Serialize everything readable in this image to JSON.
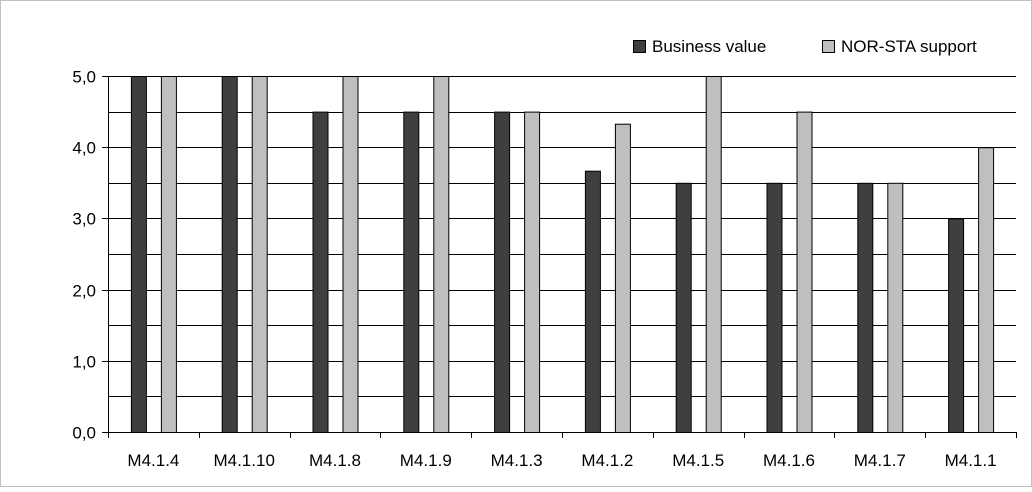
{
  "chart_data": {
    "type": "bar",
    "title": "",
    "xlabel": "",
    "ylabel": "",
    "ylim": [
      0,
      5
    ],
    "y_ticks": [
      "0,0",
      "1,0",
      "2,0",
      "3,0",
      "4,0",
      "5,0"
    ],
    "y_tick_values": [
      0,
      1,
      2,
      3,
      4,
      5
    ],
    "grid": true,
    "legend_position": "top-right",
    "categories": [
      "M4.1.4",
      "M4.1.10",
      "M4.1.8",
      "M4.1.9",
      "M4.1.3",
      "M4.1.2",
      "M4.1.5",
      "M4.1.6",
      "M4.1.7",
      "M4.1.1"
    ],
    "series": [
      {
        "name": "Business value",
        "color": "#3f3f3f",
        "values": [
          5.0,
          5.0,
          4.5,
          4.5,
          4.5,
          3.67,
          3.5,
          3.5,
          3.5,
          3.0
        ]
      },
      {
        "name": "NOR-STA support",
        "color": "#bfbfbf",
        "values": [
          5.0,
          5.0,
          5.0,
          5.0,
          4.5,
          4.33,
          5.0,
          4.5,
          3.5,
          4.0
        ]
      }
    ]
  }
}
